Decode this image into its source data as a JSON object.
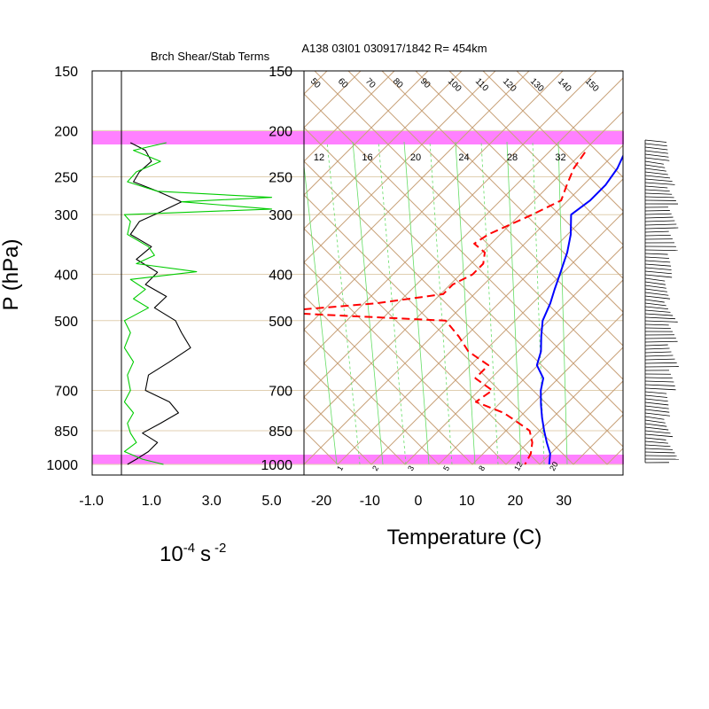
{
  "figure": {
    "left_title": "Brch Shear/Stab Terms",
    "right_title": "A138 03I01 030917/1842 R= 454km",
    "ylabel": "P (hPa)",
    "left_xlabel_base": "10",
    "left_xlabel_exp": "-4",
    "left_xlabel_unit": "s",
    "left_xlabel_unit_exp": "-2",
    "right_xlabel": "Temperature (C)",
    "left_xticks": [
      "-1.0",
      "1.0",
      "3.0",
      "5.0"
    ],
    "right_xticks": [
      "-20",
      "-10",
      "0",
      "10",
      "20",
      "30"
    ],
    "pressure_ticks": [
      "150",
      "200",
      "250",
      "300",
      "400",
      "500",
      "700",
      "850",
      "1000"
    ],
    "adiabat_labels": [
      "50",
      "60",
      "70",
      "80",
      "90",
      "100",
      "110",
      "120",
      "130",
      "140",
      "150"
    ],
    "mixing_ratio_top_labels": [
      "12",
      "16",
      "20",
      "24",
      "28",
      "32"
    ],
    "mixing_ratio_bottom_labels": [
      "1",
      "2",
      "3",
      "5",
      "8",
      "12",
      "20"
    ],
    "colors": {
      "highlight": "#ff80ff",
      "temperature": "#0000ff",
      "dewpoint": "#ff0000",
      "shear_term": "#000000",
      "stability_term": "#00cc00",
      "skewt_lines": "#c8a27a",
      "mixing_lines": "#66dd66",
      "isobars": "#e0cfb0"
    }
  },
  "chart_data": [
    {
      "type": "line",
      "title": "Brch Shear/Stab Terms",
      "ylabel": "P (hPa)",
      "xlabel": "10^-4 s^-2",
      "xlim": [
        -1.0,
        5.0
      ],
      "ylim": [
        1000,
        150
      ],
      "y_scale": "log",
      "series": [
        {
          "color": "#000000",
          "pressure": [
            212,
            220,
            232,
            244,
            256,
            268,
            282,
            296,
            310,
            330,
            350,
            372,
            396,
            420,
            445,
            470,
            500,
            530,
            570,
            610,
            650,
            700,
            740,
            780,
            820,
            860,
            900,
            940,
            975,
            1000
          ],
          "values": [
            0.3,
            0.8,
            1.0,
            0.6,
            0.4,
            1.2,
            2.0,
            1.3,
            0.6,
            0.3,
            1.0,
            0.5,
            1.2,
            0.8,
            1.5,
            1.1,
            1.8,
            2.0,
            2.3,
            1.6,
            0.9,
            0.8,
            1.6,
            1.9,
            1.3,
            0.7,
            1.2,
            0.9,
            0.5,
            0.2
          ]
        },
        {
          "color": "#00cc00",
          "pressure": [
            212,
            220,
            232,
            244,
            256,
            268,
            276,
            282,
            292,
            300,
            310,
            330,
            350,
            365,
            380,
            395,
            410,
            430,
            450,
            470,
            500,
            530,
            570,
            610,
            650,
            700,
            740,
            780,
            820,
            860,
            900,
            940,
            975,
            1000
          ],
          "values": [
            1.5,
            0.4,
            1.3,
            0.5,
            0.2,
            1.2,
            5.0,
            2.0,
            5.0,
            0.1,
            0.3,
            0.2,
            0.9,
            1.1,
            0.5,
            2.5,
            0.3,
            0.8,
            0.4,
            0.9,
            0.1,
            0.3,
            0.1,
            0.4,
            0.2,
            0.3,
            0.1,
            0.4,
            0.2,
            0.3,
            0.5,
            0.1,
            0.7,
            1.4
          ]
        }
      ]
    },
    {
      "type": "line",
      "title": "A138 03I01 030917/1842 R= 454km",
      "xlabel": "Temperature (C)",
      "ylabel": "P (hPa)",
      "xlim": [
        -23,
        41
      ],
      "ylim": [
        1000,
        150
      ],
      "y_scale": "log",
      "skew": "skew-T log-P",
      "series": [
        {
          "color": "#0000ff",
          "pressure": [
            205,
            220,
            240,
            260,
            280,
            300,
            330,
            360,
            400,
            430,
            460,
            500,
            540,
            580,
            620,
            660,
            700,
            750,
            800,
            850,
            900,
            950,
            1000
          ],
          "temperature": [
            -24,
            -22,
            -20,
            -19,
            -19,
            -20,
            -16,
            -13,
            -10,
            -8,
            -6,
            -4,
            -1,
            2,
            4,
            8,
            10,
            13,
            16,
            19,
            22,
            25,
            27
          ]
        },
        {
          "color": "#ff0000",
          "pressure": [
            222,
            240,
            260,
            280,
            300,
            330,
            345,
            360,
            380,
            400,
            420,
            440,
            460,
            480,
            500,
            540,
            580,
            620,
            660,
            700,
            740,
            780,
            810,
            850,
            900,
            950,
            1000
          ],
          "temperature": [
            -30,
            -29,
            -27,
            -25,
            -28,
            -33,
            -34,
            -30,
            -28,
            -28,
            -30,
            -30,
            -42,
            -62,
            -24,
            -18,
            -13,
            -6,
            -6,
            0,
            -1,
            7,
            11,
            16,
            19,
            21,
            22
          ]
        }
      ]
    }
  ]
}
